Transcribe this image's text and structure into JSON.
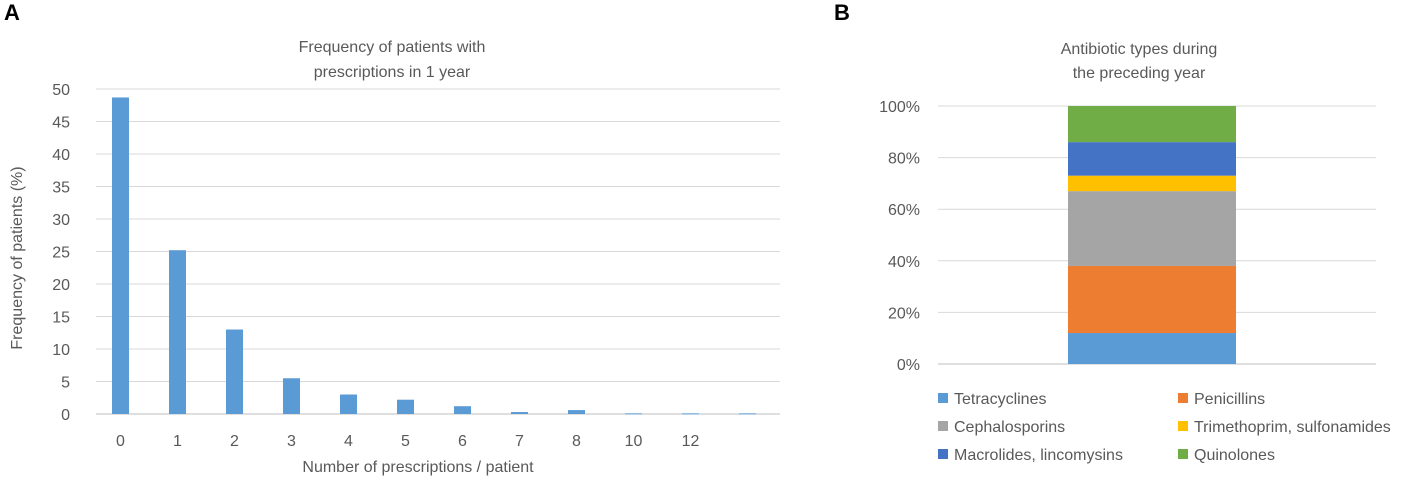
{
  "panels": {
    "a_label": "A",
    "b_label": "B"
  },
  "chart_data": [
    {
      "type": "bar",
      "title_lines": [
        "Frequency of patients with",
        "prescriptions in 1 year"
      ],
      "xlabel": "Number of prescriptions / patient",
      "ylabel": "Frequency of patients (%)",
      "ylim": [
        0,
        50
      ],
      "yticks": [
        "0",
        "5",
        "10",
        "15",
        "20",
        "25",
        "30",
        "35",
        "40",
        "45",
        "50"
      ],
      "categories": [
        "0",
        "1",
        "2",
        "3",
        "4",
        "5",
        "6",
        "7",
        "8",
        "10",
        "12",
        ""
      ],
      "values": [
        48.7,
        25.2,
        13.0,
        5.5,
        3.0,
        2.2,
        1.2,
        0.3,
        0.6,
        0.1,
        0.1,
        0.1
      ],
      "bar_color": "#5B9BD5",
      "grid": true
    },
    {
      "type": "bar",
      "stacked": true,
      "title_lines": [
        "Antibiotic types during",
        "the preceding year"
      ],
      "ylim": [
        0,
        100
      ],
      "yticks": [
        "0%",
        "20%",
        "40%",
        "60%",
        "80%",
        "100%"
      ],
      "series": [
        {
          "name": "Tetracyclines",
          "value": 12,
          "color": "#5B9BD5"
        },
        {
          "name": "Penicillins",
          "value": 26,
          "color": "#ED7D31"
        },
        {
          "name": "Cephalosporins",
          "value": 29,
          "color": "#A5A5A5"
        },
        {
          "name": "Trimethoprim, sulfonamides",
          "value": 6,
          "color": "#FFC000"
        },
        {
          "name": "Macrolides, lincomysins",
          "value": 13,
          "color": "#4472C4"
        },
        {
          "name": "Quinolones",
          "value": 14,
          "color": "#70AD47"
        }
      ],
      "grid": true,
      "legend_position": "bottom"
    }
  ]
}
